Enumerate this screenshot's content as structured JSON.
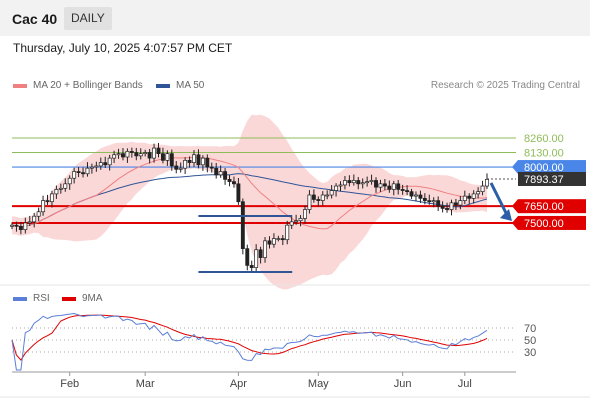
{
  "header": {
    "instrument": "Cac 40",
    "timeframe_label": "DAILY"
  },
  "datetime": "Thursday, July 10, 2025 4:07:57 PM CET",
  "legend": {
    "ma20_label": "MA 20 + Bollinger Bands",
    "ma50_label": "MA 50",
    "rsi_label": "RSI",
    "rsi_ma_label": "9MA",
    "research": "Research © 2025 Trading Central"
  },
  "colors": {
    "ma20": "#f08080",
    "ma50": "#2f5597",
    "band_fill": "#f9c8c8",
    "resistance": "#8fbc5a",
    "pivot": "#4a86e8",
    "support": "#e00000",
    "last_price_box": "#333333",
    "arrow": "#2a5fa8",
    "rsi": "#5b7fd6",
    "rsi_ma": "#e00000"
  },
  "chart_data": [
    {
      "type": "line",
      "name": "price",
      "x_labels": [
        "Feb",
        "Mar",
        "Apr",
        "May",
        "Jun",
        "Jul"
      ],
      "y_min": 6900,
      "y_max": 8600,
      "levels": {
        "resistances": [
          8260.0,
          8130.0
        ],
        "pivot": 8000.0,
        "last_price": 7893.37,
        "supports": [
          7650.0,
          7500.0
        ]
      },
      "level_labels": {
        "r1": "8260.00",
        "r2": "8130.00",
        "pivot": "8000.00",
        "last": "7893.37",
        "s1": "7650.00",
        "s2": "7500.00"
      },
      "closes": [
        7480,
        7470,
        7440,
        7500,
        7510,
        7560,
        7600,
        7700,
        7690,
        7760,
        7800,
        7810,
        7850,
        7900,
        7960,
        7950,
        7940,
        7990,
        8000,
        8010,
        8040,
        8020,
        8080,
        8110,
        8120,
        8090,
        8140,
        8130,
        8100,
        8120,
        8130,
        8080,
        8170,
        8120,
        8060,
        8120,
        8010,
        7980,
        7990,
        8060,
        8040,
        8110,
        8020,
        8080,
        8000,
        7990,
        7930,
        7960,
        7890,
        7870,
        7850,
        7690,
        7270,
        7120,
        7100,
        7260,
        7190,
        7340,
        7310,
        7360,
        7360,
        7350,
        7480,
        7510,
        7520,
        7540,
        7620,
        7750,
        7710,
        7700,
        7750,
        7750,
        7790,
        7830,
        7840,
        7880,
        7860,
        7880,
        7850,
        7860,
        7870,
        7880,
        7820,
        7850,
        7830,
        7800,
        7850,
        7800,
        7790,
        7780,
        7740,
        7750,
        7720,
        7700,
        7690,
        7700,
        7650,
        7630,
        7620,
        7680,
        7660,
        7700,
        7740,
        7720,
        7760,
        7780,
        7830,
        7890
      ]
    },
    {
      "type": "line",
      "name": "rsi",
      "y_min": 0,
      "y_max": 100,
      "ticks": [
        70,
        50,
        30
      ],
      "tick_labels": [
        "70",
        "50",
        "30"
      ],
      "x_labels": [
        "Feb",
        "Mar",
        "Apr",
        "May",
        "Jun",
        "Jul"
      ]
    }
  ]
}
